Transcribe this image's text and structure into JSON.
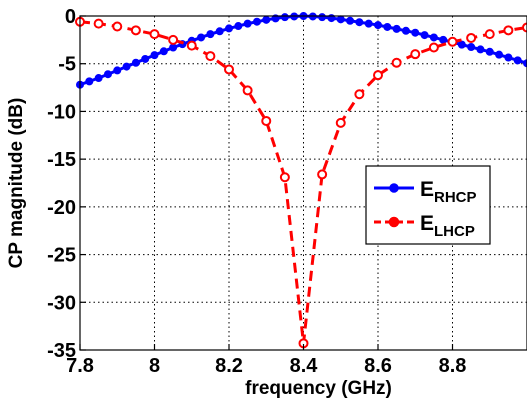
{
  "chart_data": {
    "type": "line",
    "title": "",
    "xlabel": "frequency (GHz)",
    "ylabel": "CP magnitude (dB)",
    "xlim": [
      7.8,
      9.0
    ],
    "ylim": [
      -35,
      0
    ],
    "x_tick_labels": [
      "7.8",
      "8",
      "8.2",
      "8.4",
      "8.6",
      "8.8"
    ],
    "y_tick_labels": [
      "0",
      "-5",
      "-10",
      "-15",
      "-20",
      "-25",
      "-30",
      "-35"
    ],
    "grid": true,
    "legend_position": "right",
    "series": [
      {
        "name": "E",
        "subscript": "RHCP",
        "color": "#0000ff",
        "line_style": "solid",
        "marker": "filled-circle",
        "x": [
          7.8,
          7.825,
          7.85,
          7.875,
          7.9,
          7.925,
          7.95,
          7.975,
          8.0,
          8.025,
          8.05,
          8.075,
          8.1,
          8.125,
          8.15,
          8.175,
          8.2,
          8.225,
          8.25,
          8.275,
          8.3,
          8.325,
          8.35,
          8.375,
          8.4,
          8.425,
          8.45,
          8.475,
          8.5,
          8.525,
          8.55,
          8.575,
          8.6,
          8.625,
          8.65,
          8.675,
          8.7,
          8.725,
          8.75,
          8.775,
          8.8,
          8.825,
          8.85,
          8.875,
          8.9,
          8.925,
          8.95,
          8.975,
          9.0
        ],
        "values": [
          -7.2,
          -6.85,
          -6.5,
          -6.1,
          -5.7,
          -5.3,
          -4.9,
          -4.5,
          -4.1,
          -3.7,
          -3.3,
          -2.95,
          -2.6,
          -2.25,
          -1.9,
          -1.6,
          -1.3,
          -1.05,
          -0.8,
          -0.6,
          -0.4,
          -0.25,
          -0.12,
          -0.05,
          0.0,
          -0.05,
          -0.12,
          -0.22,
          -0.35,
          -0.5,
          -0.65,
          -0.8,
          -0.95,
          -1.15,
          -1.35,
          -1.55,
          -1.75,
          -2.0,
          -2.25,
          -2.5,
          -2.75,
          -3.0,
          -3.25,
          -3.5,
          -3.75,
          -4.05,
          -4.35,
          -4.65,
          -4.95
        ]
      },
      {
        "name": "E",
        "subscript": "LHCP",
        "color": "#ff0000",
        "line_style": "dashed",
        "marker": "open-circle",
        "x": [
          7.8,
          7.85,
          7.9,
          7.95,
          8.0,
          8.05,
          8.1,
          8.15,
          8.2,
          8.25,
          8.3,
          8.35,
          8.4,
          8.45,
          8.5,
          8.55,
          8.6,
          8.65,
          8.7,
          8.75,
          8.8,
          8.85,
          8.9,
          8.95,
          9.0
        ],
        "values": [
          -0.6,
          -0.8,
          -1.1,
          -1.5,
          -1.9,
          -2.5,
          -3.1,
          -4.2,
          -5.6,
          -7.8,
          -11.0,
          -16.9,
          -34.3,
          -16.6,
          -11.2,
          -8.2,
          -6.2,
          -4.9,
          -4.0,
          -3.3,
          -2.7,
          -2.3,
          -1.9,
          -1.5,
          -1.2
        ]
      }
    ]
  }
}
